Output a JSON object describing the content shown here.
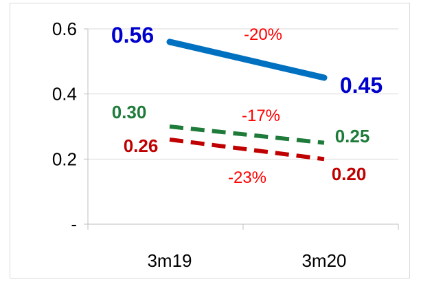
{
  "chart_data": {
    "type": "line",
    "categories": [
      "3m19",
      "3m20"
    ],
    "ylim": [
      0,
      0.6
    ],
    "yticks": [
      0,
      0.2,
      0.4,
      0.6
    ],
    "ytick_labels": [
      "-",
      "0.2",
      "0.4",
      "0.6"
    ],
    "grid": true,
    "legend": "none",
    "series": [
      {
        "values": [
          0.56,
          0.45
        ],
        "labels": [
          "0.56",
          "0.45"
        ],
        "change": "-20%",
        "color": "#0070C0",
        "label_color": "#0000CC",
        "dash": "solid"
      },
      {
        "values": [
          0.3,
          0.25
        ],
        "labels": [
          "0.30",
          "0.25"
        ],
        "change": "-17%",
        "color": "#1E7B3A",
        "label_color": "#1E7B3A",
        "dash": "dashed"
      },
      {
        "values": [
          0.26,
          0.2
        ],
        "labels": [
          "0.26",
          "0.20"
        ],
        "change": "-23%",
        "color": "#C00000",
        "label_color": "#C00000",
        "dash": "dashed"
      }
    ],
    "change_color": "#FF0000"
  }
}
